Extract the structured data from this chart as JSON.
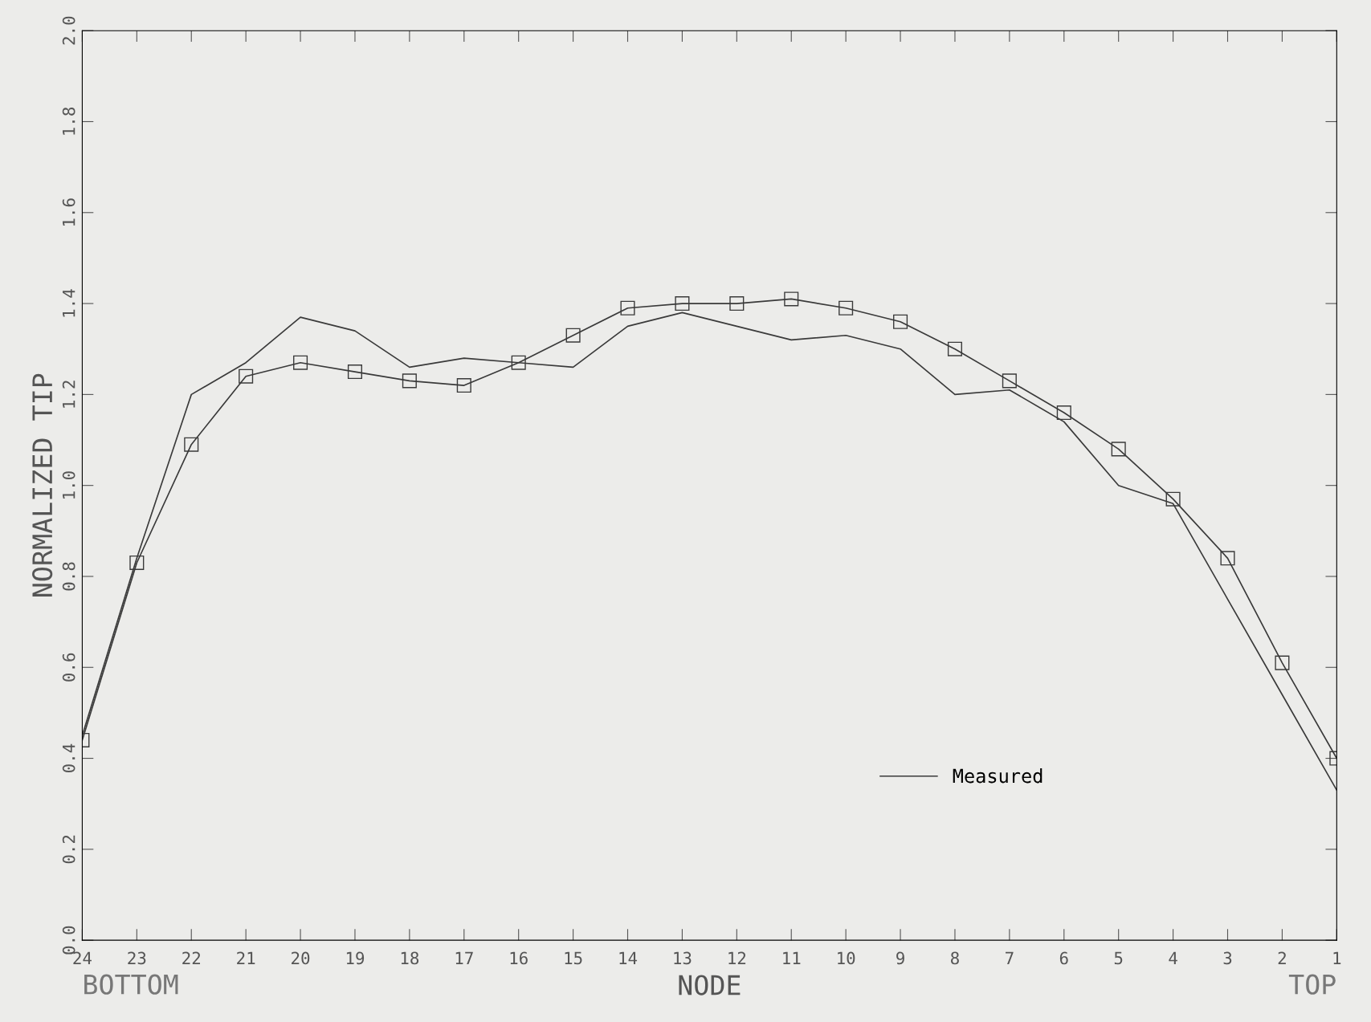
{
  "chart_data": {
    "type": "line",
    "xlabel": "NODE",
    "ylabel": "NORMALIZED TIP",
    "categories": [
      "24",
      "23",
      "22",
      "21",
      "20",
      "19",
      "18",
      "17",
      "16",
      "15",
      "14",
      "13",
      "12",
      "11",
      "10",
      "9",
      "8",
      "7",
      "6",
      "5",
      "4",
      "3",
      "2",
      "1"
    ],
    "series": [
      {
        "name": "Measured",
        "color": "#3a3a3a",
        "marker": "none",
        "values": [
          0.45,
          0.84,
          1.2,
          1.27,
          1.37,
          1.34,
          1.26,
          1.28,
          1.27,
          1.26,
          1.35,
          1.38,
          1.35,
          1.32,
          1.33,
          1.3,
          1.2,
          1.21,
          1.14,
          1.0,
          0.96,
          0.75,
          0.54,
          0.33
        ]
      },
      {
        "color": "#3a3a3a",
        "marker": "square",
        "values": [
          0.44,
          0.83,
          1.09,
          1.24,
          1.27,
          1.25,
          1.23,
          1.22,
          1.27,
          1.33,
          1.39,
          1.4,
          1.4,
          1.41,
          1.39,
          1.36,
          1.3,
          1.23,
          1.16,
          1.08,
          0.97,
          0.84,
          0.61,
          0.4
        ]
      }
    ],
    "ylim": [
      0,
      2.0
    ],
    "yticks": [
      {
        "value": 0,
        "label": "0.0"
      },
      0.2,
      0.4,
      0.6,
      0.8,
      {
        "value": 1,
        "label": "1.0"
      },
      1.2,
      1.4,
      1.6,
      1.8,
      {
        "value": 2,
        "label": "2.0"
      }
    ],
    "annotations": [
      "BOTTOM",
      "TOP"
    ],
    "legend": "bottom right",
    "grid": false
  }
}
